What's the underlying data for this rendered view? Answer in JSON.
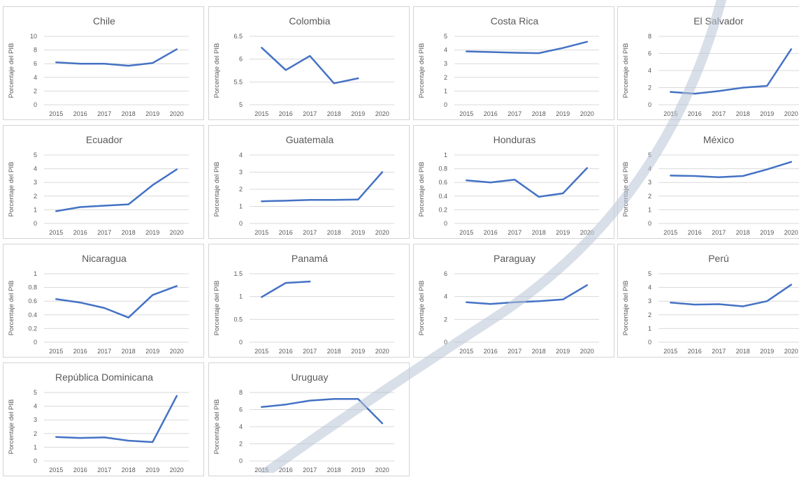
{
  "accent": "#4472c4",
  "chart_data": [
    {
      "type": "line",
      "title": "Chile",
      "ylabel": "Porcentaje del PIB",
      "x": [
        "2015",
        "2016",
        "2017",
        "2018",
        "2019",
        "2020"
      ],
      "y_ticks": [
        "0",
        "2",
        "4",
        "6",
        "8",
        "10"
      ],
      "ylim": [
        0,
        10
      ],
      "series": [
        {
          "values": [
            6.2,
            6.0,
            6.0,
            5.7,
            6.1,
            8.1
          ]
        }
      ]
    },
    {
      "type": "line",
      "title": "Colombia",
      "ylabel": "Porcentaje del PIB",
      "x": [
        "2015",
        "2016",
        "2017",
        "2018",
        "2019",
        "2020"
      ],
      "y_ticks": [
        "5",
        "5.5",
        "6",
        "6.5"
      ],
      "ylim": [
        5,
        6.5
      ],
      "series": [
        {
          "values": [
            6.25,
            5.76,
            6.07,
            5.47,
            5.58,
            null
          ]
        }
      ]
    },
    {
      "type": "line",
      "title": "Costa Rica",
      "ylabel": "Porcentaje del PIB",
      "x": [
        "2015",
        "2016",
        "2017",
        "2018",
        "2019",
        "2020"
      ],
      "y_ticks": [
        "0",
        "1",
        "2",
        "3",
        "4",
        "5"
      ],
      "ylim": [
        0,
        5
      ],
      "series": [
        {
          "values": [
            3.9,
            3.85,
            3.8,
            3.77,
            4.15,
            4.6
          ]
        }
      ]
    },
    {
      "type": "line",
      "title": "El Salvador",
      "ylabel": "Porcentaje del PIB",
      "x": [
        "2015",
        "2016",
        "2017",
        "2018",
        "2019",
        "2020"
      ],
      "y_ticks": [
        "0",
        "2",
        "4",
        "6",
        "8"
      ],
      "ylim": [
        0,
        8
      ],
      "series": [
        {
          "values": [
            1.5,
            1.3,
            1.6,
            2.0,
            2.2,
            6.5
          ]
        }
      ]
    },
    {
      "type": "line",
      "title": "Ecuador",
      "ylabel": "Porcentaje del PIB",
      "x": [
        "2015",
        "2016",
        "2017",
        "2018",
        "2019",
        "2020"
      ],
      "y_ticks": [
        "0",
        "1",
        "2",
        "3",
        "4",
        "5"
      ],
      "ylim": [
        0,
        5
      ],
      "series": [
        {
          "values": [
            0.9,
            1.2,
            1.3,
            1.4,
            2.8,
            3.95
          ]
        }
      ]
    },
    {
      "type": "line",
      "title": "Guatemala",
      "ylabel": "Porcentaje del PIB",
      "x": [
        "2015",
        "2016",
        "2017",
        "2018",
        "2019",
        "2020"
      ],
      "y_ticks": [
        "0",
        "1",
        "2",
        "3",
        "4"
      ],
      "ylim": [
        0,
        4
      ],
      "series": [
        {
          "values": [
            1.3,
            1.33,
            1.38,
            1.38,
            1.4,
            3.0
          ]
        }
      ]
    },
    {
      "type": "line",
      "title": "Honduras",
      "ylabel": "Porcentaje del PIB",
      "x": [
        "2015",
        "2016",
        "2017",
        "2018",
        "2019",
        "2020"
      ],
      "y_ticks": [
        "0",
        "0.2",
        "0.4",
        "0.6",
        "0.8",
        "1"
      ],
      "ylim": [
        0,
        1
      ],
      "series": [
        {
          "values": [
            0.63,
            0.6,
            0.64,
            0.39,
            0.44,
            0.81
          ]
        }
      ]
    },
    {
      "type": "line",
      "title": "México",
      "ylabel": "Porcentaje del PIB",
      "x": [
        "2015",
        "2016",
        "2017",
        "2018",
        "2019",
        "2020"
      ],
      "y_ticks": [
        "0",
        "1",
        "2",
        "3",
        "4",
        "5"
      ],
      "ylim": [
        0,
        5
      ],
      "series": [
        {
          "values": [
            3.5,
            3.47,
            3.38,
            3.47,
            3.95,
            4.5
          ]
        }
      ]
    },
    {
      "type": "line",
      "title": "Nicaragua",
      "ylabel": "Porcentaje del PIB",
      "x": [
        "2015",
        "2016",
        "2017",
        "2018",
        "2019",
        "2020"
      ],
      "y_ticks": [
        "0",
        "0.2",
        "0.4",
        "0.6",
        "0.8",
        "1"
      ],
      "ylim": [
        0,
        1
      ],
      "series": [
        {
          "values": [
            0.63,
            0.58,
            0.5,
            0.36,
            0.69,
            0.82
          ]
        }
      ]
    },
    {
      "type": "line",
      "title": "Panamá",
      "ylabel": "Porcentaje del PIB",
      "x": [
        "2015",
        "2016",
        "2017",
        "2018",
        "2019",
        "2020"
      ],
      "y_ticks": [
        "0",
        "0.5",
        "1",
        "1.5"
      ],
      "ylim": [
        0,
        1.5
      ],
      "series": [
        {
          "values": [
            0.99,
            1.3,
            1.33,
            null,
            null,
            null
          ]
        }
      ]
    },
    {
      "type": "line",
      "title": "Paraguay",
      "ylabel": "Porcentaje del PIB",
      "x": [
        "2015",
        "2016",
        "2017",
        "2018",
        "2019",
        "2020"
      ],
      "y_ticks": [
        "0",
        "2",
        "4",
        "6"
      ],
      "ylim": [
        0,
        6
      ],
      "series": [
        {
          "values": [
            3.5,
            3.35,
            3.5,
            3.6,
            3.75,
            5.0
          ]
        }
      ]
    },
    {
      "type": "line",
      "title": "Perú",
      "ylabel": "Porcentaje del PIB",
      "x": [
        "2015",
        "2016",
        "2017",
        "2018",
        "2019",
        "2020"
      ],
      "y_ticks": [
        "0",
        "1",
        "2",
        "3",
        "4",
        "5"
      ],
      "ylim": [
        0,
        5
      ],
      "series": [
        {
          "values": [
            2.9,
            2.75,
            2.78,
            2.62,
            3.0,
            4.2
          ]
        }
      ]
    },
    {
      "type": "line",
      "title": "República Dominicana",
      "ylabel": "Porcentaje del PIB",
      "x": [
        "2015",
        "2016",
        "2017",
        "2018",
        "2019",
        "2020"
      ],
      "y_ticks": [
        "0",
        "1",
        "2",
        "3",
        "4",
        "5"
      ],
      "ylim": [
        0,
        5
      ],
      "series": [
        {
          "values": [
            1.75,
            1.68,
            1.72,
            1.48,
            1.38,
            4.75
          ]
        }
      ]
    },
    {
      "type": "line",
      "title": "Uruguay",
      "ylabel": "Porcentaje del PIB",
      "x": [
        "2015",
        "2016",
        "2017",
        "2018",
        "2019",
        "2020"
      ],
      "y_ticks": [
        "0",
        "2",
        "4",
        "6",
        "8"
      ],
      "ylim": [
        0,
        8
      ],
      "series": [
        {
          "values": [
            6.3,
            6.6,
            7.05,
            7.25,
            7.25,
            4.4
          ]
        }
      ]
    }
  ]
}
